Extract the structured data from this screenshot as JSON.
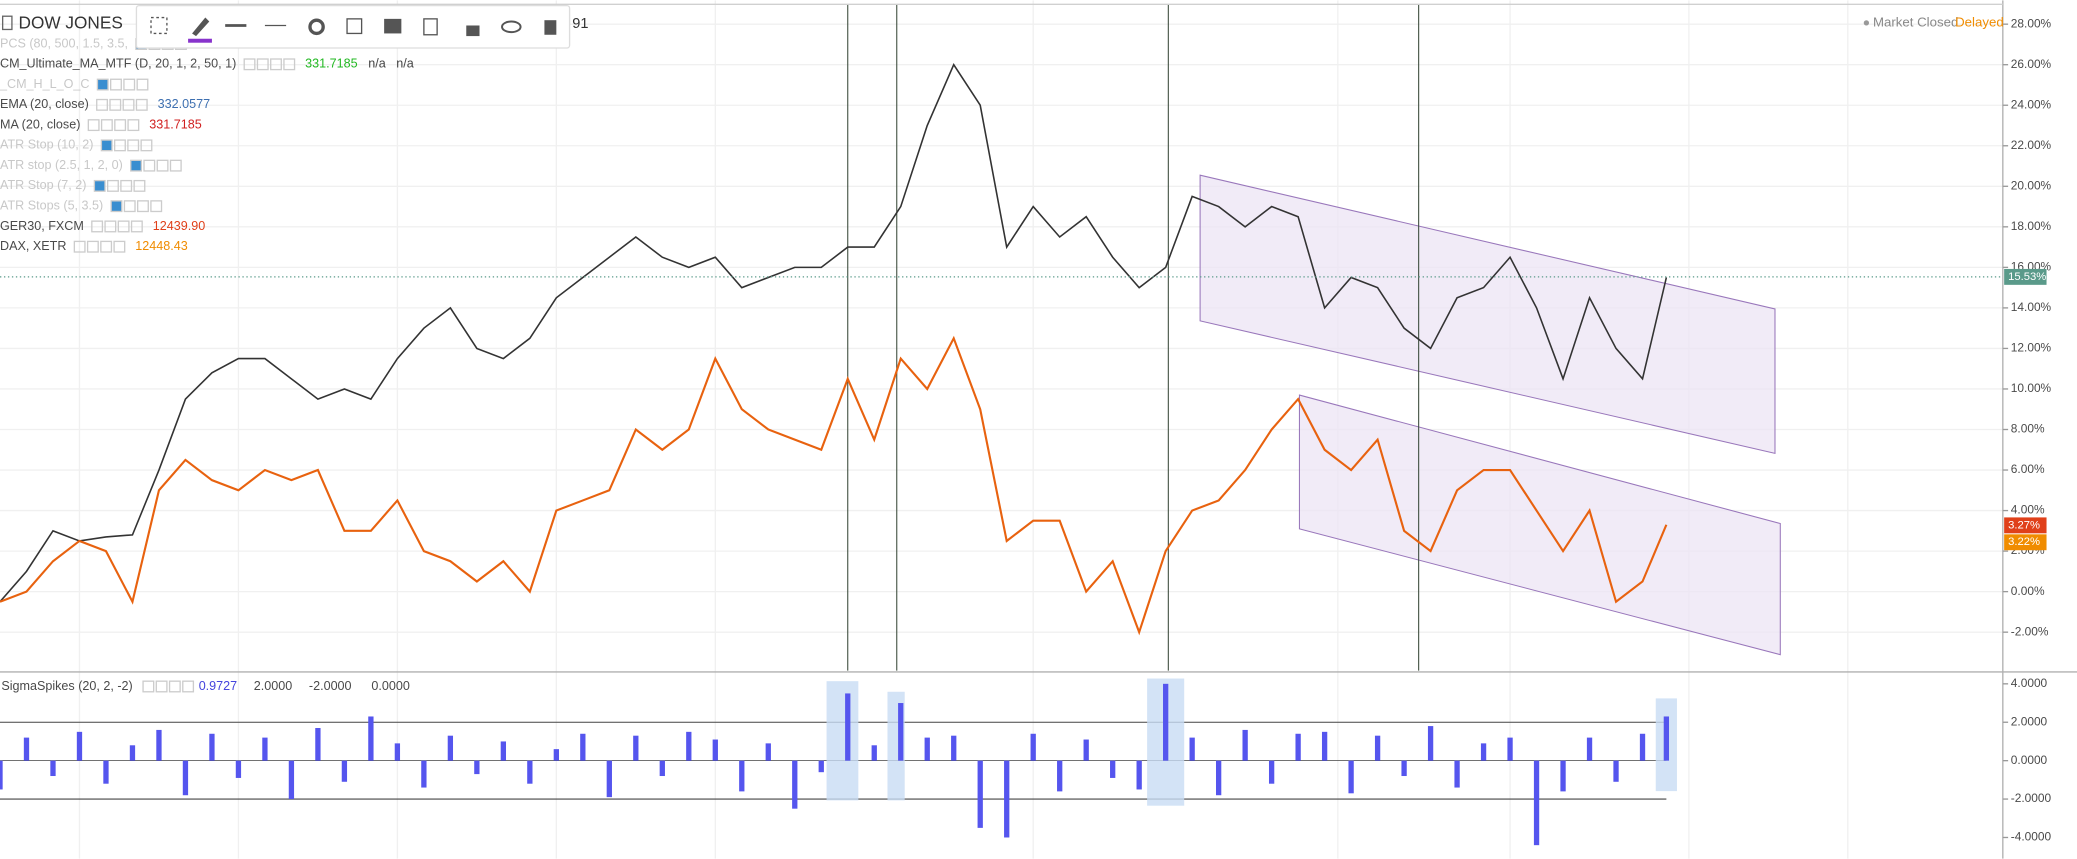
{
  "header": {
    "symbol": "DOW JONES",
    "tail": "91",
    "status": "Market Closed",
    "delay": "Delayed"
  },
  "legend": [
    {
      "label": "PCS (80, 500, 1.5, 3.5,",
      "faint": true,
      "values": []
    },
    {
      "label": "CM_Ultimate_MA_MTF (D, 20, 1, 2, 50, 1)",
      "faint": false,
      "values": [
        "331.7185",
        "n/a",
        "n/a"
      ],
      "color": "#22b822"
    },
    {
      "label": "_CM_H_L_O_C",
      "faint": true,
      "values": []
    },
    {
      "label": "EMA (20, close)",
      "faint": false,
      "values": [
        "332.0577"
      ],
      "color": "#3d6fb0"
    },
    {
      "label": "MA (20, close)",
      "faint": false,
      "values": [
        "331.7185"
      ],
      "color": "#d02020"
    },
    {
      "label": "ATR Stop (10, 2)",
      "faint": true,
      "values": []
    },
    {
      "label": "ATR stop (2.5, 1, 2, 0)",
      "faint": true,
      "values": []
    },
    {
      "label": "ATR Stop (7, 2)",
      "faint": true,
      "values": []
    },
    {
      "label": "ATR Stops (5, 3.5)",
      "faint": true,
      "values": []
    },
    {
      "label": "GER30, FXCM",
      "faint": false,
      "values": [
        "12439.90"
      ],
      "color": "#e0401a"
    },
    {
      "label": "DAX, XETR",
      "faint": false,
      "values": [
        "12448.43"
      ],
      "color": "#f08c00"
    }
  ],
  "main": {
    "yticks": [
      {
        "value": 28,
        "label": "28.00%"
      },
      {
        "value": 26,
        "label": "26.00%"
      },
      {
        "value": 24,
        "label": "24.00%"
      },
      {
        "value": 22,
        "label": "22.00%"
      },
      {
        "value": 20,
        "label": "20.00%"
      },
      {
        "value": 18,
        "label": "18.00%"
      },
      {
        "value": 16,
        "label": "16.00%"
      },
      {
        "value": 14,
        "label": "14.00%"
      },
      {
        "value": 12,
        "label": "12.00%"
      },
      {
        "value": 10,
        "label": "10.00%"
      },
      {
        "value": 8,
        "label": "8.00%"
      },
      {
        "value": 6,
        "label": "6.00%"
      },
      {
        "value": 4,
        "label": "4.00%"
      },
      {
        "value": 2,
        "label": "2.00%"
      },
      {
        "value": 0,
        "label": "0.00%"
      },
      {
        "value": -2,
        "label": "-2.00%"
      }
    ],
    "series": [
      {
        "name": "DOW JONES",
        "color": "#333333",
        "values": [
          -0.5,
          1,
          3,
          2.5,
          2.7,
          2.8,
          6,
          9.5,
          10.8,
          11.5,
          11.5,
          10.5,
          9.5,
          10,
          9.5,
          11.5,
          13,
          14,
          12,
          11.5,
          12.5,
          14.5,
          15.5,
          16.5,
          17.5,
          16.5,
          16,
          16.5,
          15,
          15.5,
          16,
          16,
          17,
          17,
          19,
          23,
          26,
          24,
          17,
          19,
          17.5,
          18.5,
          16.5,
          15,
          16,
          19.5,
          19,
          18,
          19,
          18.5,
          14,
          15.5,
          15,
          13,
          12,
          14.5,
          15,
          16.5,
          14,
          10.5,
          14.5,
          12,
          10.5,
          15.5
        ]
      },
      {
        "name": "DAX",
        "color": "#e8620f",
        "values": [
          -0.5,
          0,
          1.5,
          2.5,
          2,
          -0.5,
          5,
          6.5,
          5.5,
          5,
          6,
          5.5,
          6,
          3,
          3,
          4.5,
          2,
          1.5,
          0.5,
          1.5,
          0,
          4,
          4.5,
          5,
          8,
          7,
          8,
          11.5,
          9,
          8,
          7.5,
          7,
          10.5,
          7.5,
          11.5,
          10,
          12.5,
          9,
          2.5,
          3.5,
          3.5,
          0,
          1.5,
          -2,
          2,
          4,
          4.5,
          6,
          8,
          9.5,
          7,
          6,
          7.5,
          3,
          2,
          5,
          6,
          6,
          4,
          2,
          4,
          -0.5,
          0.5,
          3.3
        ]
      }
    ],
    "price_labels": [
      {
        "value": 15.53,
        "label": "15.53%",
        "color": "#5a9a8a"
      },
      {
        "value": 3.27,
        "label": "3.27%",
        "color": "#e0401a"
      },
      {
        "value": 3.22,
        "label": "3.22%",
        "color": "#f08c00"
      }
    ]
  },
  "sub": {
    "title": "SigmaSpikes (20, 2, -2)",
    "readings": [
      "0.9727",
      "2.0000",
      "-2.0000",
      "0.0000"
    ],
    "yticks": [
      {
        "value": 4,
        "label": "4.0000"
      },
      {
        "value": 2,
        "label": "2.0000"
      },
      {
        "value": 0,
        "label": "0.0000"
      },
      {
        "value": -2,
        "label": "-2.0000"
      },
      {
        "value": -4,
        "label": "-4.0000"
      }
    ],
    "color": "#5555ee",
    "values": [
      -1.5,
      1.2,
      -0.8,
      1.5,
      -1.2,
      0.8,
      1.6,
      -1.8,
      1.4,
      -0.9,
      1.2,
      -2.0,
      1.7,
      -1.1,
      2.3,
      0.9,
      -1.4,
      1.3,
      -0.7,
      1.0,
      -1.2,
      0.6,
      1.4,
      -1.9,
      1.3,
      -0.8,
      1.5,
      1.1,
      -1.6,
      0.9,
      -2.5,
      -0.6,
      3.5,
      0.8,
      3.0,
      1.2,
      1.3,
      -3.5,
      -4.0,
      1.4,
      -1.6,
      1.1,
      -0.9,
      -1.5,
      4.0,
      1.2,
      -1.8,
      1.6,
      -1.2,
      1.4,
      1.5,
      -1.7,
      1.3,
      -0.8,
      1.8,
      -1.4,
      0.9,
      1.2,
      -4.4,
      -1.6,
      1.2,
      -1.1,
      1.4,
      2.3
    ]
  }
}
